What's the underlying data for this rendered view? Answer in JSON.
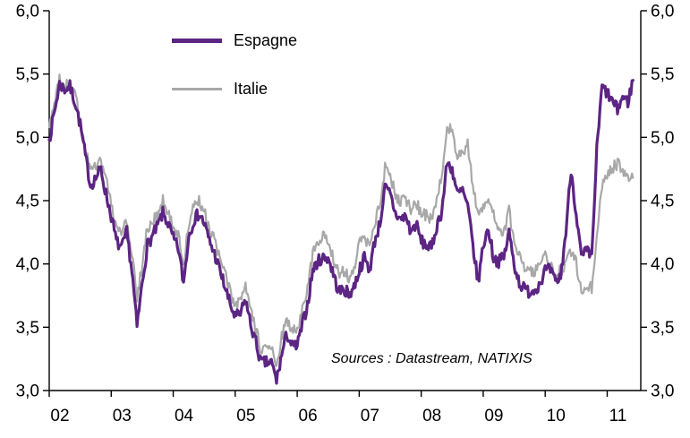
{
  "chart_data": {
    "type": "line",
    "title": "",
    "x": {
      "start": "2002-01",
      "end": "2011-06",
      "interval": "monthly",
      "tick_labels": [
        "02",
        "03",
        "04",
        "05",
        "06",
        "07",
        "08",
        "09",
        "10",
        "11"
      ]
    },
    "ylim": [
      3.0,
      6.0
    ],
    "ytick_values": [
      3.0,
      3.5,
      4.0,
      4.5,
      5.0,
      5.5,
      6.0
    ],
    "ytick_labels": [
      "3,0",
      "3,5",
      "4,0",
      "4,5",
      "5,0",
      "5,5",
      "6,0"
    ],
    "grid": false,
    "legend_position": "upper-left-inset",
    "axes": "left-and-right-mirrored",
    "source_note": "Sources : Datastream, NATIXIS",
    "series": [
      {
        "name": "Espagne",
        "color": "#5C2483",
        "line_width": 3.2,
        "legend_swatch_height": 5,
        "values": [
          4.98,
          5.2,
          5.42,
          5.38,
          5.4,
          5.28,
          5.1,
          4.85,
          4.62,
          4.68,
          4.75,
          4.55,
          4.38,
          4.18,
          4.12,
          4.25,
          3.95,
          3.5,
          3.85,
          4.15,
          4.22,
          4.3,
          4.4,
          4.32,
          4.2,
          4.12,
          3.85,
          4.22,
          4.35,
          4.4,
          4.32,
          4.18,
          4.08,
          3.95,
          3.82,
          3.68,
          3.58,
          3.6,
          3.72,
          3.52,
          3.38,
          3.22,
          3.22,
          3.22,
          3.08,
          3.28,
          3.45,
          3.35,
          3.35,
          3.52,
          3.68,
          3.95,
          4.02,
          4.05,
          4.05,
          3.92,
          3.78,
          3.8,
          3.76,
          3.82,
          3.95,
          4.05,
          3.95,
          4.18,
          4.32,
          4.6,
          4.55,
          4.4,
          4.35,
          4.38,
          4.25,
          4.32,
          4.18,
          4.15,
          4.12,
          4.3,
          4.42,
          4.8,
          4.75,
          4.55,
          4.58,
          4.45,
          4.15,
          3.85,
          4.15,
          4.28,
          4.05,
          4.02,
          4.05,
          4.25,
          4.0,
          3.85,
          3.8,
          3.78,
          3.8,
          3.85,
          3.95,
          3.95,
          3.85,
          3.9,
          4.25,
          4.75,
          4.4,
          4.05,
          4.1,
          4.05,
          4.9,
          5.4,
          5.35,
          5.28,
          5.22,
          5.32,
          5.28,
          5.45
        ]
      },
      {
        "name": "Italie",
        "color": "#A8A8A8",
        "line_width": 2.2,
        "legend_swatch_height": 3,
        "values": [
          5.08,
          5.28,
          5.45,
          5.4,
          5.42,
          5.32,
          5.15,
          4.92,
          4.72,
          4.78,
          4.85,
          4.65,
          4.48,
          4.28,
          4.22,
          4.35,
          4.08,
          3.72,
          4.0,
          4.28,
          4.32,
          4.4,
          4.5,
          4.42,
          4.3,
          4.22,
          4.0,
          4.32,
          4.45,
          4.5,
          4.42,
          4.28,
          4.18,
          4.05,
          3.92,
          3.78,
          3.68,
          3.7,
          3.82,
          3.62,
          3.48,
          3.32,
          3.32,
          3.32,
          3.22,
          3.42,
          3.55,
          3.48,
          3.48,
          3.65,
          3.8,
          4.08,
          4.15,
          4.22,
          4.18,
          4.05,
          3.92,
          3.95,
          3.9,
          3.98,
          4.15,
          4.22,
          4.12,
          4.32,
          4.48,
          4.75,
          4.7,
          4.55,
          4.5,
          4.52,
          4.42,
          4.5,
          4.4,
          4.38,
          4.35,
          4.52,
          4.68,
          5.1,
          5.05,
          4.85,
          4.85,
          4.95,
          4.6,
          4.4,
          4.45,
          4.52,
          4.4,
          4.3,
          4.25,
          4.42,
          4.15,
          4.05,
          3.95,
          3.95,
          3.95,
          4.0,
          4.05,
          3.98,
          3.9,
          3.95,
          4.0,
          4.1,
          4.0,
          3.78,
          3.85,
          3.8,
          4.25,
          4.6,
          4.72,
          4.75,
          4.8,
          4.75,
          4.7,
          4.68
        ]
      }
    ]
  }
}
